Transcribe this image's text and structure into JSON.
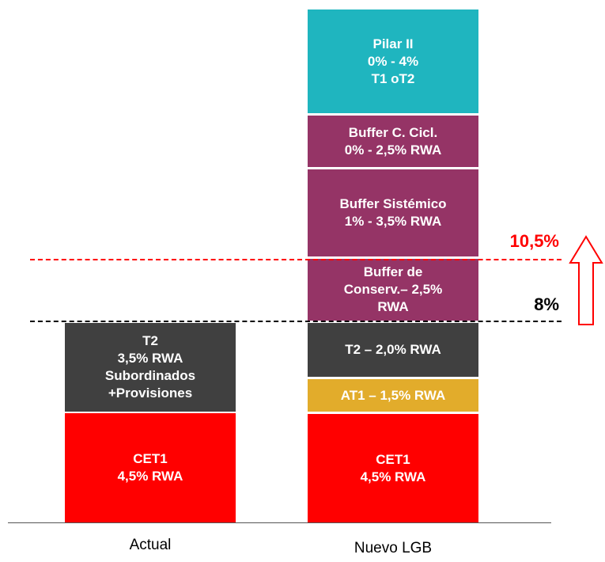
{
  "columns": [
    {
      "label": "Actual",
      "blocks": [
        {
          "lines": [
            "T2",
            "3,5%  RWA",
            "Subordinados",
            "+Provisiones"
          ],
          "color": "#404040"
        },
        {
          "lines": [
            "CET1",
            "4,5%  RWA"
          ],
          "color": "#ff0000"
        }
      ]
    },
    {
      "label": "Nuevo  LGB",
      "blocks": [
        {
          "lines": [
            "Pilar II",
            "0%  - 4%",
            "T1 oT2"
          ],
          "color": "#1fb5bf"
        },
        {
          "lines": [
            "Buffer C. Cicl.",
            "0%  - 2,5%  RWA"
          ],
          "color": "#953466"
        },
        {
          "lines": [
            "Buffer Sistémico",
            "1%  - 3,5%  RWA"
          ],
          "color": "#953466"
        },
        {
          "lines": [
            "Buffer de",
            "Conserv.– 2,5%",
            "RWA"
          ],
          "color": "#953466"
        },
        {
          "lines": [
            "T2 – 2,0%  RWA"
          ],
          "color": "#404040"
        },
        {
          "lines": [
            "AT1 – 1,5%  RWA"
          ],
          "color": "#e2ac2b"
        },
        {
          "lines": [
            "CET1",
            "4,5%  RWA"
          ],
          "color": "#ff0000"
        }
      ]
    }
  ],
  "thresholds": [
    {
      "label": "10,5%",
      "color": "#ff0000"
    },
    {
      "label": "8%",
      "color": "#000000"
    }
  ]
}
